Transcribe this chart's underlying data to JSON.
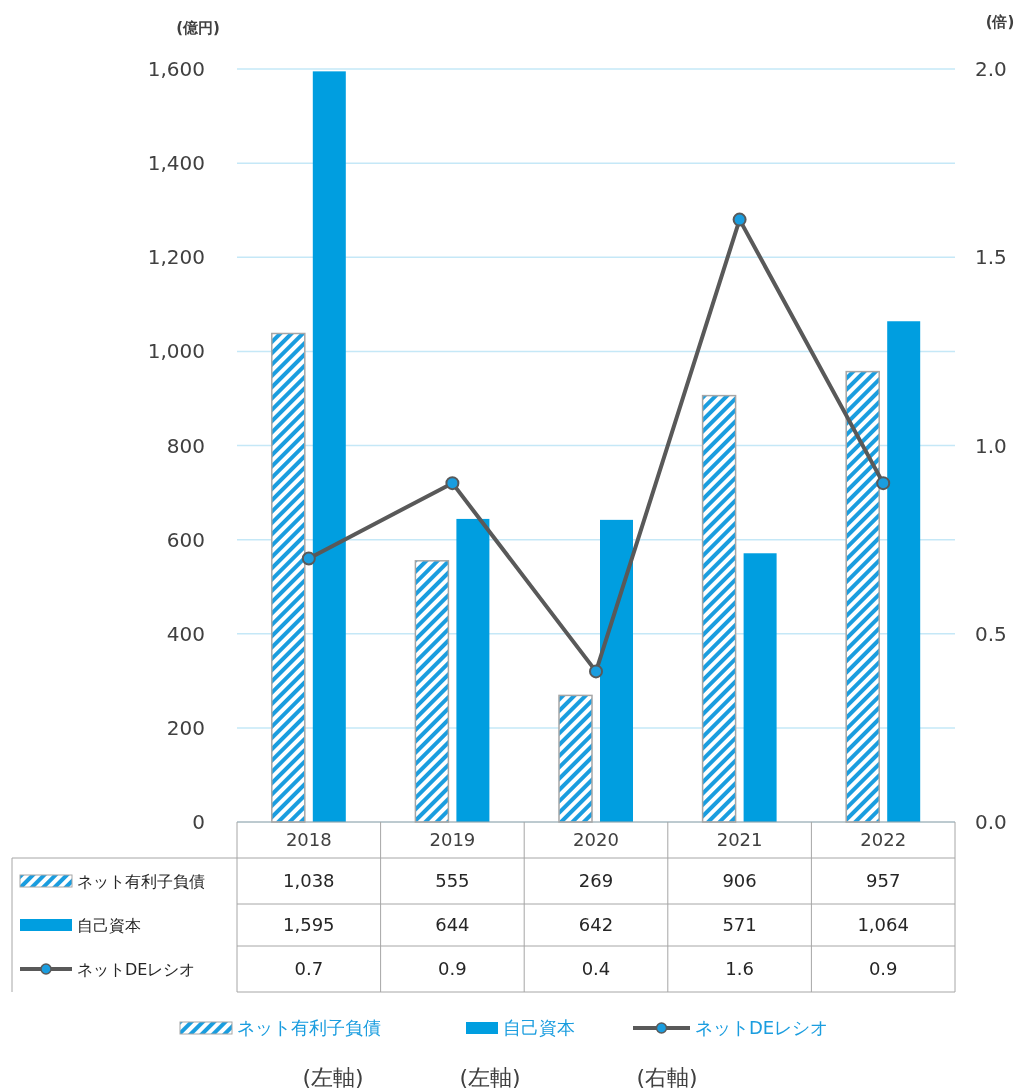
{
  "chart_data": {
    "type": "bar",
    "ylabel": "(億円)",
    "y2label": "(倍)",
    "categories": [
      "2018",
      "2019",
      "2020",
      "2021",
      "2022"
    ],
    "series": [
      {
        "name": "ネット有利子負債",
        "color": "#1a9ddf",
        "values": [
          1038,
          555,
          269,
          906,
          957
        ],
        "value_labels": [
          "1,038",
          "555",
          "269",
          "906",
          "957"
        ]
      },
      {
        "name": "自己資本",
        "color": "#009ee0",
        "values": [
          1595,
          644,
          642,
          571,
          1064
        ],
        "value_labels": [
          "1,595",
          "644",
          "642",
          "571",
          "1,064"
        ]
      },
      {
        "name": "ネットDEレシオ",
        "type": "line",
        "axis": "y2",
        "color": "#595959",
        "marker": "circle",
        "values": [
          0.7,
          0.9,
          0.4,
          1.6,
          0.9
        ],
        "value_labels": [
          "0.7",
          "0.9",
          "0.4",
          "1.6",
          "0.9"
        ]
      }
    ],
    "ylim": [
      0,
      1600
    ],
    "yticks": [
      {
        "value": 0,
        "label": "0"
      },
      {
        "value": 200,
        "label": "200"
      },
      {
        "value": 400,
        "label": "400"
      },
      {
        "value": 600,
        "label": "600"
      },
      {
        "value": 800,
        "label": "800"
      },
      {
        "value": 1000,
        "label": "1,000"
      },
      {
        "value": 1200,
        "label": "1,200"
      },
      {
        "value": 1400,
        "label": "1,400"
      },
      {
        "value": 1600,
        "label": "1,600"
      }
    ],
    "y2lim": [
      0,
      2
    ],
    "y2ticks": [
      {
        "value": 0,
        "label": "0.0"
      },
      {
        "value": 0.5,
        "label": "0.5"
      },
      {
        "value": 1,
        "label": "1.0"
      },
      {
        "value": 1.5,
        "label": "1.5"
      },
      {
        "value": 2,
        "label": "2.0"
      }
    ],
    "grid": "y",
    "legend": "bottom",
    "annotations": [
      "(左軸)",
      "(左軸)",
      "(右軸)"
    ]
  }
}
